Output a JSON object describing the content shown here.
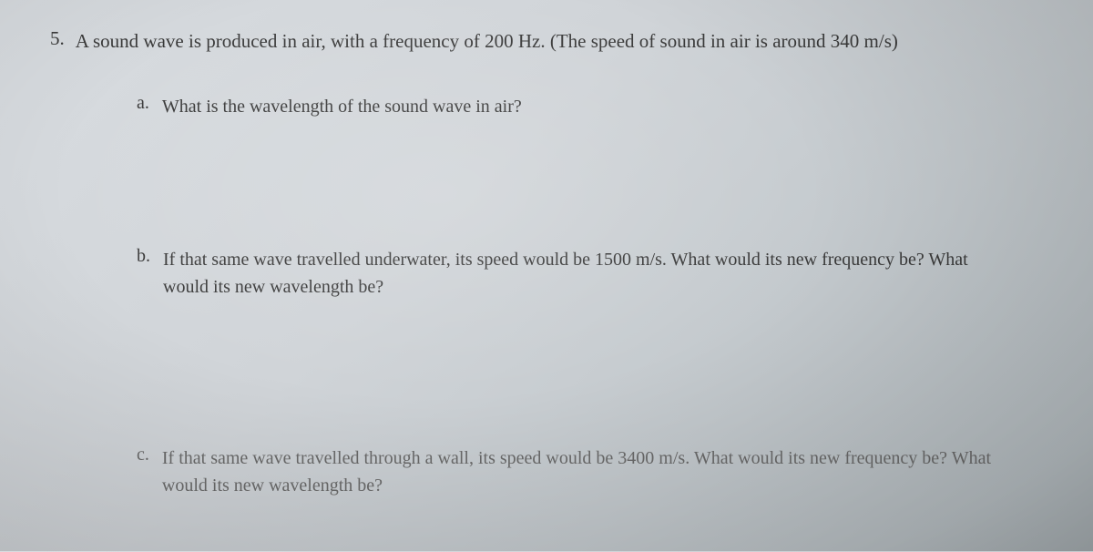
{
  "question": {
    "number": "5.",
    "text": "A sound wave is produced in air, with a frequency of 200 Hz. (The speed of sound in air is around 340 m/s)"
  },
  "parts": {
    "a": {
      "letter": "a.",
      "text": "What is the wavelength of the sound wave in air?"
    },
    "b": {
      "letter": "b.",
      "text": "If that same wave travelled underwater, its speed would be 1500 m/s. What would its new frequency be? What would its new wavelength be?"
    },
    "c": {
      "letter": "c.",
      "text": "If that same wave travelled through a wall, its speed would be 3400 m/s. What would its new frequency be? What would its new wavelength be?"
    }
  },
  "style": {
    "background_gradient_start": "#d8dce0",
    "background_gradient_end": "#b0b8bc",
    "text_color": "#3a3a3a",
    "faded_text_color": "#6a6a6a",
    "font_family": "Georgia, serif",
    "main_fontsize": 21,
    "sub_fontsize": 20
  }
}
